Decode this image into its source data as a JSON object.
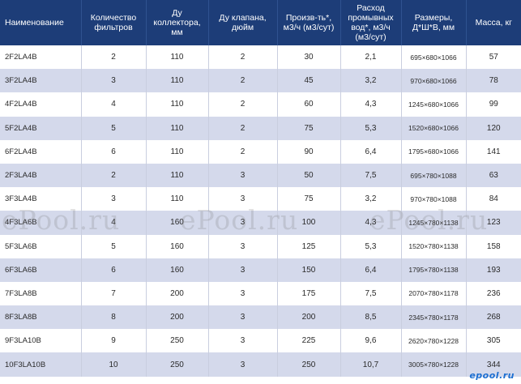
{
  "table": {
    "headers": [
      "Наименование",
      "Количество фильтров",
      "Ду коллектора, мм",
      "Ду клапана, дюйм",
      "Произв-ть*, м3/ч (м3/сут)",
      "Расход промывных вод*, м3/ч (м3/сут)",
      "Размеры, Д*Ш*В, мм",
      "Масса, кг"
    ],
    "rows": [
      [
        "2F2LA4B",
        "2",
        "110",
        "2",
        "30",
        "2,1",
        "695×680×1066",
        "57"
      ],
      [
        "3F2LA4B",
        "3",
        "110",
        "2",
        "45",
        "3,2",
        "970×680×1066",
        "78"
      ],
      [
        "4F2LA4B",
        "4",
        "110",
        "2",
        "60",
        "4,3",
        "1245×680×1066",
        "99"
      ],
      [
        "5F2LA4B",
        "5",
        "110",
        "2",
        "75",
        "5,3",
        "1520×680×1066",
        "120"
      ],
      [
        "6F2LA4B",
        "6",
        "110",
        "2",
        "90",
        "6,4",
        "1795×680×1066",
        "141"
      ],
      [
        "2F3LA4B",
        "2",
        "110",
        "3",
        "50",
        "7,5",
        "695×780×1088",
        "63"
      ],
      [
        "3F3LA4B",
        "3",
        "110",
        "3",
        "75",
        "3,2",
        "970×780×1088",
        "84"
      ],
      [
        "4F3LA6B",
        "4",
        "160",
        "3",
        "100",
        "4,3",
        "1245×780×1138",
        "123"
      ],
      [
        "5F3LA6B",
        "5",
        "160",
        "3",
        "125",
        "5,3",
        "1520×780×1138",
        "158"
      ],
      [
        "6F3LA6B",
        "6",
        "160",
        "3",
        "150",
        "6,4",
        "1795×780×1138",
        "193"
      ],
      [
        "7F3LA8B",
        "7",
        "200",
        "3",
        "175",
        "7,5",
        "2070×780×1178",
        "236"
      ],
      [
        "8F3LA8B",
        "8",
        "200",
        "3",
        "200",
        "8,5",
        "2345×780×1178",
        "268"
      ],
      [
        "9F3LA10B",
        "9",
        "250",
        "3",
        "225",
        "9,6",
        "2620×780×1228",
        "305"
      ],
      [
        "10F3LA10B",
        "10",
        "250",
        "3",
        "250",
        "10,7",
        "3005×780×1228",
        "344"
      ]
    ]
  },
  "watermark": [
    "ePool.ru",
    "ePool.ru",
    "ePool.ru"
  ],
  "corner_logo": "epool.ru",
  "colors": {
    "header_bg": "#1d3d78",
    "stripe_bg": "#d4d9eb"
  }
}
